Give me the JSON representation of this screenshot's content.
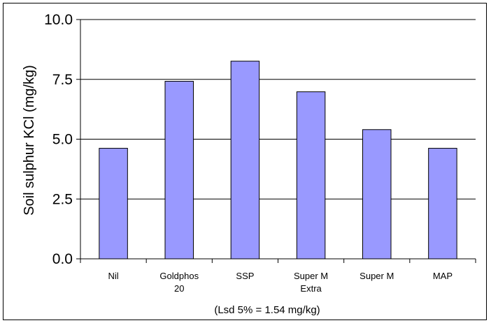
{
  "chart_data": {
    "type": "bar",
    "title": "",
    "xlabel": "",
    "ylabel": "Soil sulphur KCl (mg/kg)",
    "footnote": "(Lsd 5% = 1.54 mg/kg)",
    "categories": [
      [
        "Nil"
      ],
      [
        "Goldphos",
        "20"
      ],
      [
        "SSP"
      ],
      [
        "Super M",
        "Extra"
      ],
      [
        "Super M"
      ],
      [
        "MAP"
      ]
    ],
    "values": [
      4.62,
      7.42,
      8.26,
      6.98,
      5.4,
      4.62
    ],
    "ylim": [
      0,
      10
    ],
    "yticks": [
      "0.0",
      "2.5",
      "5.0",
      "7.5",
      "10.0"
    ],
    "grid": true,
    "bar_color": "#9999ff",
    "legend": "none"
  }
}
